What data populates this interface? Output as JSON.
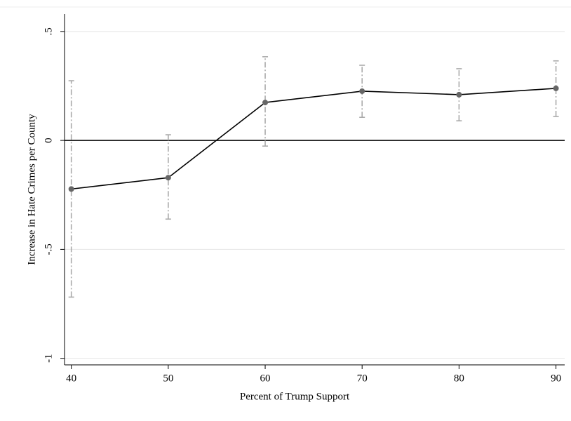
{
  "chart_data": {
    "type": "line",
    "x_label": "Percent of Trump Support",
    "y_label": "Increase in Hate Crimes per County",
    "x": [
      40,
      50,
      60,
      70,
      80,
      90
    ],
    "series": [
      {
        "color": "#000000",
        "marker_color": "#666666",
        "ci_color": "#aaaaaa",
        "values": [
          -0.223,
          -0.171,
          0.174,
          0.226,
          0.21,
          0.239
        ],
        "lower": [
          -0.719,
          -0.361,
          -0.026,
          0.106,
          0.09,
          0.11
        ],
        "upper": [
          0.274,
          0.026,
          0.384,
          0.345,
          0.329,
          0.365
        ]
      }
    ],
    "xlim": [
      39.3,
      90.9
    ],
    "xticks": [
      40,
      50,
      60,
      70,
      80,
      90
    ],
    "ylim": [
      -1.03,
      0.58
    ],
    "yticks": [
      {
        "value": -1,
        "label": "-1"
      },
      {
        "value": -0.5,
        "label": "-.5"
      },
      0,
      {
        "value": 0.5,
        "label": ".5"
      }
    ],
    "reference_line": 0,
    "grid": true
  }
}
